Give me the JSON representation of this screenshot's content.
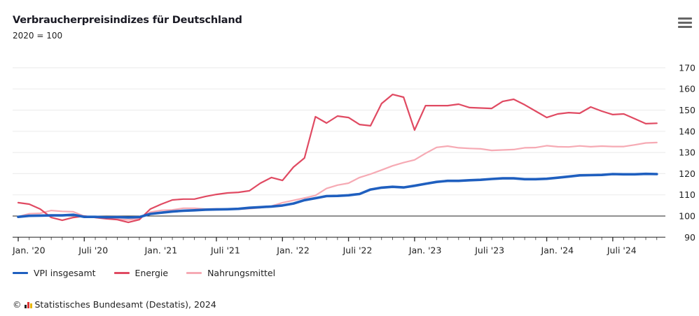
{
  "header": {
    "title": "Verbraucherpreisindizes für Deutschland",
    "subtitle": "2020 = 100",
    "menu_icon": "hamburger-menu-icon"
  },
  "legend": [
    {
      "label": "VPI insgesamt",
      "color": "#1f5fbf"
    },
    {
      "label": "Energie",
      "color": "#e04a62"
    },
    {
      "label": "Nahrungsmittel",
      "color": "#f6aab4"
    }
  ],
  "credit": {
    "copyright": "©",
    "text": "Statistisches Bundesamt (Destatis), 2024"
  },
  "chart_data": {
    "type": "line",
    "title": "Verbraucherpreisindizes für Deutschland",
    "subtitle": "2020 = 100",
    "xlabel": "",
    "ylabel": "",
    "ylim": [
      90,
      170
    ],
    "yticks": [
      90,
      100,
      110,
      120,
      130,
      140,
      150,
      160,
      170
    ],
    "y_axis_position": "right",
    "baseline": 100,
    "grid": true,
    "legend_position": "bottom-left",
    "x_start": "2020-01",
    "x_frequency": "monthly",
    "x_tick_labels": [
      {
        "label": "Jan. '20",
        "index": 0
      },
      {
        "label": "Juli '20",
        "index": 6
      },
      {
        "label": "Jan. '21",
        "index": 12
      },
      {
        "label": "Juli '21",
        "index": 18
      },
      {
        "label": "Jan. '22",
        "index": 24
      },
      {
        "label": "Juli '22",
        "index": 30
      },
      {
        "label": "Jan. '23",
        "index": 36
      },
      {
        "label": "Juli '23",
        "index": 42
      },
      {
        "label": "Jan. '24",
        "index": 48
      },
      {
        "label": "Juli '24",
        "index": 54
      }
    ],
    "series": [
      {
        "name": "VPI insgesamt",
        "color": "#1f5fbf",
        "values": [
          99.6,
          100.1,
          100.2,
          100.3,
          100.3,
          100.6,
          99.6,
          99.6,
          99.4,
          99.5,
          99.3,
          99.5,
          101.0,
          101.6,
          102.1,
          102.5,
          102.7,
          103.0,
          103.1,
          103.2,
          103.4,
          103.9,
          104.2,
          104.5,
          105.0,
          105.9,
          107.5,
          108.4,
          109.4,
          109.5,
          109.8,
          110.4,
          112.5,
          113.4,
          113.8,
          113.5,
          114.3,
          115.2,
          116.1,
          116.6,
          116.6,
          116.9,
          117.1,
          117.5,
          117.8,
          117.8,
          117.4,
          117.4,
          117.6,
          118.1,
          118.6,
          119.2,
          119.3,
          119.4,
          119.8,
          119.7,
          119.7,
          119.9,
          119.8
        ]
      },
      {
        "name": "Energie",
        "color": "#e04a62",
        "values": [
          106.3,
          105.6,
          103.3,
          99.3,
          98.0,
          99.3,
          100.0,
          99.3,
          98.7,
          98.3,
          97.0,
          98.3,
          103.3,
          105.6,
          107.6,
          108.0,
          108.0,
          109.2,
          110.2,
          110.9,
          111.2,
          111.9,
          115.5,
          118.2,
          116.8,
          123.1,
          127.4,
          146.9,
          143.9,
          147.2,
          146.5,
          143.2,
          142.6,
          153.1,
          157.4,
          156.1,
          140.6,
          152.1,
          152.1,
          152.1,
          152.8,
          151.2,
          151.0,
          150.8,
          154.1,
          155.1,
          152.5,
          149.5,
          146.5,
          148.2,
          148.8,
          148.5,
          151.5,
          149.5,
          147.9,
          148.2,
          145.9,
          143.6,
          143.8
        ]
      },
      {
        "name": "Nahrungsmittel",
        "color": "#f6aab4",
        "values": [
          99.7,
          101.1,
          101.3,
          102.6,
          102.2,
          102.0,
          99.9,
          99.4,
          99.0,
          98.5,
          98.2,
          98.8,
          101.8,
          102.7,
          102.9,
          103.7,
          103.7,
          103.3,
          103.4,
          103.2,
          103.2,
          103.5,
          103.9,
          104.7,
          106.3,
          107.4,
          108.5,
          109.7,
          113.0,
          114.6,
          115.5,
          118.2,
          119.8,
          121.7,
          123.7,
          125.2,
          126.5,
          129.6,
          132.4,
          133.0,
          132.2,
          131.9,
          131.7,
          131.0,
          131.2,
          131.4,
          132.2,
          132.3,
          133.2,
          132.7,
          132.6,
          133.1,
          132.7,
          133.0,
          132.8,
          132.8,
          133.6,
          134.5,
          134.7
        ]
      }
    ]
  }
}
